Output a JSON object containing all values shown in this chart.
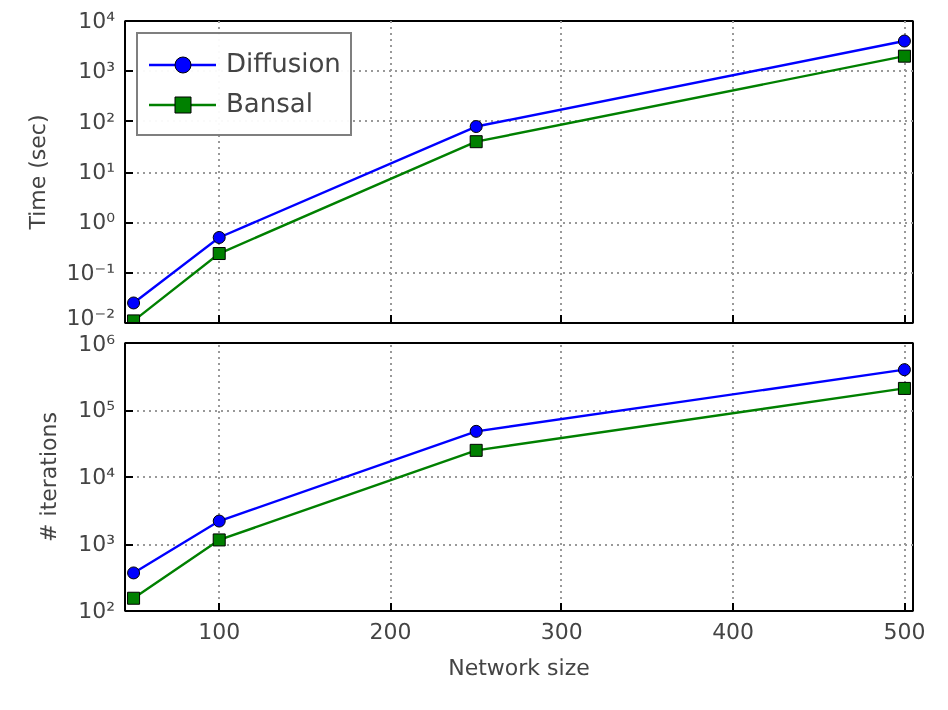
{
  "chart_data": [
    {
      "type": "line",
      "ylabel": "Time (sec)",
      "x": [
        50,
        100,
        250,
        500
      ],
      "xlim": [
        45,
        505
      ],
      "xticks": [
        100,
        200,
        300,
        400,
        500
      ],
      "ylim": [
        0.01,
        10000
      ],
      "log": "y",
      "yticks": [
        {
          "value": 0.01,
          "label": "10⁻²"
        },
        {
          "value": 0.1,
          "label": "10⁻¹"
        },
        {
          "value": 1,
          "label": "10⁰"
        },
        {
          "value": 10,
          "label": "10¹"
        },
        {
          "value": 100,
          "label": "10²"
        },
        {
          "value": 1000,
          "label": "10³"
        },
        {
          "value": 10000,
          "label": "10⁴"
        }
      ],
      "series": [
        {
          "name": "Diffusion",
          "color": "#0000ff",
          "marker": "circle",
          "values": [
            0.025,
            0.5,
            80,
            4000
          ]
        },
        {
          "name": "Bansal",
          "color": "#008000",
          "marker": "square",
          "values": [
            0.011,
            0.24,
            40,
            2000
          ]
        }
      ],
      "grid": true,
      "line_style": "solid",
      "legend": "top left",
      "tick_labels": "y"
    },
    {
      "type": "line",
      "ylabel": "# iterations",
      "xlabel": "Network size",
      "x": [
        50,
        100,
        250,
        500
      ],
      "xlim": [
        45,
        505
      ],
      "xticks": [
        100,
        200,
        300,
        400,
        500
      ],
      "ylim": [
        100,
        1000000
      ],
      "log": "y",
      "yticks": [
        {
          "value": 100,
          "label": "10²"
        },
        {
          "value": 1000,
          "label": "10³"
        },
        {
          "value": 10000,
          "label": "10⁴"
        },
        {
          "value": 100000,
          "label": "10⁵"
        },
        {
          "value": 1000000,
          "label": "10⁶"
        }
      ],
      "series": [
        {
          "color": "#0000ff",
          "marker": "circle",
          "values": [
            370,
            2200,
            48000,
            400000
          ]
        },
        {
          "color": "#008000",
          "marker": "square",
          "values": [
            155,
            1150,
            25000,
            210000
          ]
        }
      ],
      "grid": true,
      "line_style": "solid",
      "legend": false
    }
  ]
}
